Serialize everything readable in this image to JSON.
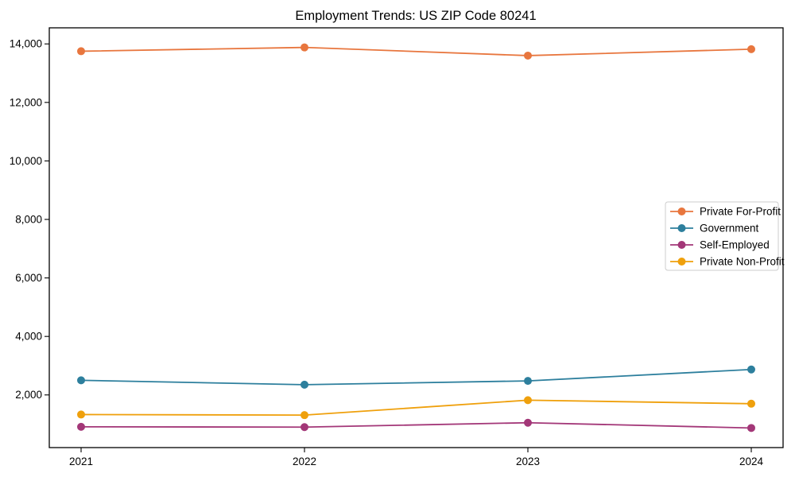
{
  "chart_data": {
    "type": "line",
    "title": "Employment Trends: US ZIP Code 80241",
    "xlabel": "",
    "ylabel": "",
    "x": [
      2021,
      2022,
      2023,
      2024
    ],
    "x_tick_labels": [
      "2021",
      "2022",
      "2023",
      "2024"
    ],
    "series": [
      {
        "name": "Private For-Profit",
        "color": "#e8763e",
        "values": [
          13750,
          13880,
          13600,
          13820
        ]
      },
      {
        "name": "Government",
        "color": "#2d7f9d",
        "values": [
          2500,
          2350,
          2480,
          2870
        ]
      },
      {
        "name": "Self-Employed",
        "color": "#a33778",
        "values": [
          910,
          900,
          1050,
          870
        ]
      },
      {
        "name": "Private Non-Profit",
        "color": "#efa00c",
        "values": [
          1330,
          1310,
          1820,
          1700
        ]
      }
    ],
    "yticks": [
      2000,
      4000,
      6000,
      8000,
      10000,
      12000,
      14000
    ],
    "ytick_labels": [
      "2,000",
      "4,000",
      "6,000",
      "8,000",
      "10,000",
      "12,000",
      "14,000"
    ],
    "ylim": [
      200,
      14550
    ],
    "grid": false,
    "marker": "circle",
    "legend_position": "right-center",
    "frame_color": "#000000",
    "legend_border_color": "#cccccc",
    "background_color": "#ffffff"
  }
}
